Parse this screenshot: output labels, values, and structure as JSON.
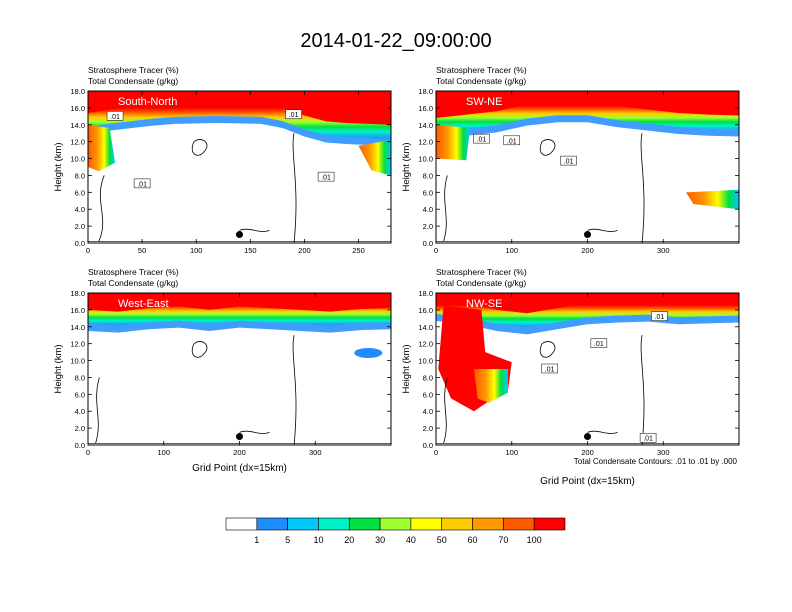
{
  "title": "2014-01-22_09:00:00",
  "colors": [
    "#ffffff",
    "#1f8cff",
    "#00c8ff",
    "#00f0c8",
    "#00e040",
    "#00ff00",
    "#a0ff30",
    "#ffff00",
    "#ffcc00",
    "#ff9900",
    "#ff5a00",
    "#ff0000"
  ],
  "colorbar": {
    "labels": [
      "1",
      "5",
      "10",
      "20",
      "30",
      "40",
      "50",
      "60",
      "70",
      "100"
    ],
    "colors": [
      "#ffffff",
      "#1f8cff",
      "#00c8ff",
      "#00f0c8",
      "#00e040",
      "#a0ff30",
      "#ffff00",
      "#ffcc00",
      "#ff9900",
      "#ff5a00",
      "#ff0000"
    ]
  },
  "footnote": "Total Condensate Contours: .01 to .01 by .000",
  "chart_data": [
    {
      "type": "heatmap",
      "panel_name": "South-North",
      "top_labels": [
        "Stratosphere Tracer   (%)",
        "Total Condensate   (g/kg)"
      ],
      "ylabel": "Height (km)",
      "xlabel": "",
      "xlim": [
        0,
        280
      ],
      "ylim": [
        0,
        18
      ],
      "xticks": [
        0,
        50,
        100,
        150,
        200,
        250
      ],
      "yticks": [
        "0.0",
        "2.0",
        "4.0",
        "6.0",
        "8.0",
        "10.0",
        "12.0",
        "14.0",
        "16.0",
        "18.0"
      ],
      "tropopause_km": [
        [
          0,
          14.8
        ],
        [
          20,
          15.2
        ],
        [
          40,
          15.5
        ],
        [
          60,
          15.8
        ],
        [
          80,
          16
        ],
        [
          120,
          16.1
        ],
        [
          160,
          16
        ],
        [
          180,
          15.5
        ],
        [
          200,
          14.5
        ],
        [
          220,
          13.8
        ],
        [
          240,
          13.6
        ],
        [
          260,
          13.5
        ],
        [
          280,
          13.4
        ]
      ],
      "contour_labels": [
        {
          "text": ".01",
          "x": 25,
          "y": 15.0
        },
        {
          "text": ".01",
          "x": 50,
          "y": 7.0
        },
        {
          "text": ".01",
          "x": 190,
          "y": 15.2
        },
        {
          "text": ".01",
          "x": 220,
          "y": 7.8
        }
      ],
      "marker": {
        "x": 140,
        "y": 1.0
      }
    },
    {
      "type": "heatmap",
      "panel_name": "SW-NE",
      "top_labels": [
        "Stratosphere Tracer   (%)",
        "Total Condensate   (g/kg)"
      ],
      "ylabel": "Height (km)",
      "xlabel": "",
      "xlim": [
        0,
        400
      ],
      "ylim": [
        0,
        18
      ],
      "xticks": [
        0,
        100,
        200,
        300
      ],
      "yticks": [
        "0.0",
        "2.0",
        "4.0",
        "6.0",
        "8.0",
        "10.0",
        "12.0",
        "14.0",
        "16.0",
        "18.0"
      ],
      "tropopause_km": [
        [
          0,
          14.2
        ],
        [
          40,
          14.6
        ],
        [
          80,
          15
        ],
        [
          120,
          15.8
        ],
        [
          160,
          16.2
        ],
        [
          200,
          16.2
        ],
        [
          240,
          15.6
        ],
        [
          280,
          15.2
        ],
        [
          320,
          14.8
        ],
        [
          360,
          14.6
        ],
        [
          400,
          14.5
        ]
      ],
      "contour_labels": [
        {
          "text": ".01",
          "x": 60,
          "y": 12.3
        },
        {
          "text": ".01",
          "x": 100,
          "y": 12.1
        },
        {
          "text": ".01",
          "x": 175,
          "y": 9.7
        }
      ],
      "marker": {
        "x": 200,
        "y": 1.0
      }
    },
    {
      "type": "heatmap",
      "panel_name": "West-East",
      "top_labels": [
        "Stratosphere Tracer   (%)",
        "Total Condensate   (g/kg)"
      ],
      "ylabel": "Height (km)",
      "xlabel": "Grid Point (dx=15km)",
      "xlim": [
        0,
        400
      ],
      "ylim": [
        0,
        18
      ],
      "xticks": [
        0,
        100,
        200,
        300
      ],
      "yticks": [
        "0.0",
        "2.0",
        "4.0",
        "6.0",
        "8.0",
        "10.0",
        "12.0",
        "14.0",
        "16.0",
        "18.0"
      ],
      "tropopause_km": [
        [
          0,
          15.4
        ],
        [
          40,
          15.2
        ],
        [
          80,
          15.6
        ],
        [
          120,
          15.8
        ],
        [
          160,
          15.4
        ],
        [
          200,
          15.8
        ],
        [
          240,
          15.6
        ],
        [
          280,
          15.4
        ],
        [
          320,
          15.2
        ],
        [
          360,
          15.5
        ],
        [
          400,
          15.6
        ]
      ],
      "contour_labels": [],
      "marker": {
        "x": 200,
        "y": 1.0
      }
    },
    {
      "type": "heatmap",
      "panel_name": "NW-SE",
      "top_labels": [
        "Stratosphere Tracer   (%)",
        "Total Condensate   (g/kg)"
      ],
      "ylabel": "Height (km)",
      "xlabel": "Grid Point (dx=15km)",
      "xlim": [
        0,
        400
      ],
      "ylim": [
        0,
        18
      ],
      "xticks": [
        0,
        100,
        200,
        300
      ],
      "yticks": [
        "0.0",
        "2.0",
        "4.0",
        "6.0",
        "8.0",
        "10.0",
        "12.0",
        "14.0",
        "16.0",
        "18.0"
      ],
      "tropopause_km": [
        [
          0,
          16.6
        ],
        [
          40,
          16.2
        ],
        [
          80,
          15.4
        ],
        [
          120,
          15
        ],
        [
          160,
          15.6
        ],
        [
          200,
          16.2
        ],
        [
          240,
          16.4
        ],
        [
          280,
          16.5
        ],
        [
          320,
          16.2
        ],
        [
          360,
          16.3
        ],
        [
          400,
          16.4
        ]
      ],
      "contour_labels": [
        {
          "text": ".01",
          "x": 295,
          "y": 15.2
        },
        {
          "text": ".01",
          "x": 215,
          "y": 12.0
        },
        {
          "text": ".01",
          "x": 150,
          "y": 9.0
        },
        {
          "text": ".01",
          "x": 280,
          "y": 0.8
        }
      ],
      "marker": {
        "x": 200,
        "y": 1.0
      }
    }
  ]
}
